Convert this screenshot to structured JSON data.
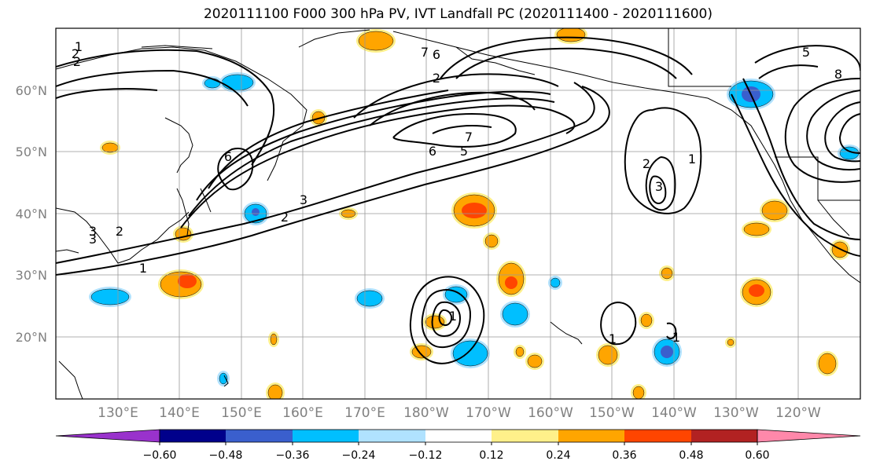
{
  "title": "2020111100 F000 300 hPa PV, IVT Landfall PC (2020111400 - 2020111600)",
  "lat_labels": [
    "60°N",
    "50°N",
    "40°N",
    "30°N",
    "20°N"
  ],
  "lon_labels": [
    "130°E",
    "140°E",
    "150°E",
    "160°E",
    "170°E",
    "180°W",
    "170°W",
    "160°W",
    "150°W",
    "140°W",
    "130°W",
    "120°W"
  ],
  "colorbar": {
    "ticks": [
      "−0.60",
      "−0.48",
      "−0.36",
      "−0.24",
      "−0.12",
      "0.12",
      "0.24",
      "0.36",
      "0.48",
      "0.60"
    ],
    "colors": [
      "#9932cc",
      "#00008b",
      "#3a5fcd",
      "#00bfff",
      "#b0e2ff",
      "#ffffff",
      "#fff08a",
      "#ffa500",
      "#ff4500",
      "#b22222",
      "#ff88aa"
    ]
  },
  "contour_labels": [
    "1",
    "2",
    "3",
    "5",
    "6",
    "7",
    "1",
    "2",
    "3",
    "5",
    "6",
    "7",
    "1",
    "2",
    "2",
    "3",
    "6",
    "8",
    "1",
    "1",
    "2",
    "3",
    "2",
    "1"
  ],
  "colors": {
    "contour": "#000000",
    "grid": "#999999",
    "coast": "#000000"
  }
}
